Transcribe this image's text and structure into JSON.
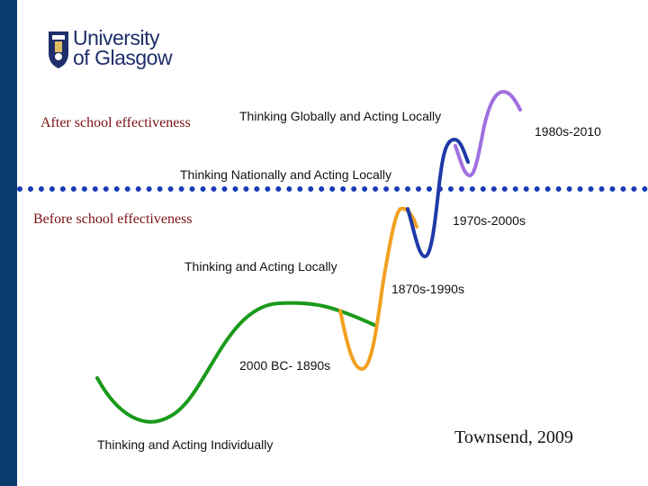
{
  "logo": {
    "line1": "University",
    "line2": "of Glasgow",
    "icon": "university-crest-icon"
  },
  "labels": {
    "after": "After school effectiveness",
    "before": "Before school effectiveness",
    "global": "Thinking Globally and Acting Locally",
    "national": "Thinking Nationally and Acting Locally",
    "local": "Thinking and Acting Locally",
    "individual": "Thinking and Acting Individually"
  },
  "periods": {
    "p1": "1980s-2010",
    "p2": "1970s-2000s",
    "p3": "1870s-1990s",
    "p4": "2000 BC- 1890s"
  },
  "citation": "Townsend, 2009",
  "colors": {
    "sidebar": "#0b3a6e",
    "divider": "#1a3bb5",
    "green": "#1a9a1a",
    "orange": "#f2a020",
    "blue": "#1f3aa8",
    "purple": "#a070e0"
  }
}
